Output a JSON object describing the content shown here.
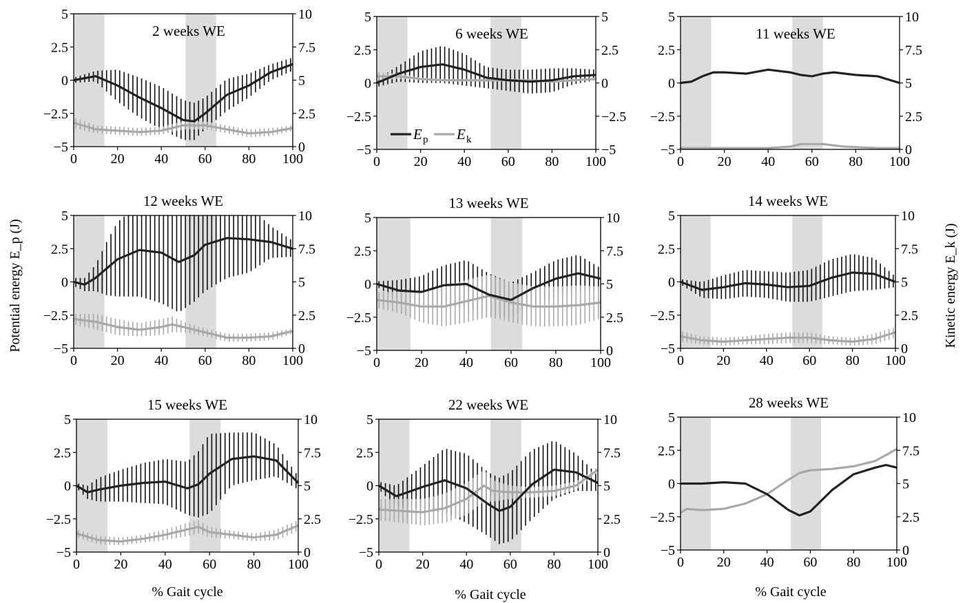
{
  "chart_data": {
    "type": "line",
    "left_ylabel": "Potential energy E_p (J)",
    "right_ylabel": "Kinetic energy E_k (J)",
    "xlabel": "% Gait cycle",
    "legend": {
      "ep": "E",
      "ep_sub": "p",
      "ek": "E",
      "ek_sub": "k",
      "placement": "panel-2 bottom-left"
    },
    "stance_shading": [
      [
        0,
        14
      ],
      [
        51,
        65
      ]
    ],
    "panels": [
      {
        "title": "2 weeks WE",
        "xlim": [
          0,
          100
        ],
        "ylim_left": [
          -5,
          5
        ],
        "ylim_right": [
          0,
          10
        ],
        "left_ticks": [
          "5",
          "2.5",
          "0",
          "−2.5",
          "−5"
        ],
        "right_ticks": [
          "10",
          "7.5",
          "5",
          "2.5",
          "0"
        ],
        "x_ticks": [
          "0",
          "20",
          "40",
          "60",
          "80",
          "100"
        ],
        "shading": [
          [
            0,
            14
          ],
          [
            51,
            65
          ]
        ],
        "ep": {
          "x": [
            0,
            10,
            20,
            30,
            40,
            50,
            55,
            60,
            70,
            80,
            90,
            100
          ],
          "y": [
            0,
            0.3,
            -0.4,
            -1.3,
            -2.1,
            -3.0,
            -3.1,
            -2.5,
            -1.1,
            -0.4,
            0.6,
            1.2
          ],
          "sd": [
            0.2,
            0.4,
            1.2,
            1.5,
            1.6,
            1.5,
            1.4,
            1.2,
            1.2,
            0.9,
            0.6,
            0.5
          ]
        },
        "ek": {
          "x": [
            0,
            10,
            20,
            30,
            40,
            50,
            60,
            70,
            80,
            90,
            100
          ],
          "y": [
            1.8,
            1.3,
            1.2,
            1.1,
            1.2,
            1.6,
            1.6,
            1.3,
            1.0,
            1.1,
            1.4
          ],
          "sd": [
            0.4,
            0.3,
            0.3,
            0.3,
            0.3,
            0.3,
            0.3,
            0.3,
            0.3,
            0.3,
            0.2
          ]
        }
      },
      {
        "title": "6 weeks WE",
        "xlim": [
          0,
          100
        ],
        "ylim_left": [
          -5,
          5
        ],
        "ylim_right": [
          -5,
          5
        ],
        "left_ticks": [
          "5",
          "2.5",
          "0",
          "−2.5",
          "−5"
        ],
        "right_ticks": [
          "5",
          "2.5",
          "0",
          "−2.5",
          "−5"
        ],
        "x_ticks": [
          "0",
          "20",
          "40",
          "60",
          "80",
          "100"
        ],
        "shading": [
          [
            0,
            14
          ],
          [
            52,
            66
          ]
        ],
        "ep": {
          "x": [
            0,
            10,
            20,
            30,
            40,
            50,
            60,
            70,
            80,
            90,
            100
          ],
          "y": [
            0,
            0.7,
            1.2,
            1.4,
            1.0,
            0.4,
            0.2,
            0.1,
            0.2,
            0.5,
            0.6
          ],
          "sd": [
            0.3,
            0.6,
            1.2,
            1.4,
            1.2,
            0.8,
            0.8,
            0.9,
            0.9,
            0.6,
            0.4
          ]
        },
        "ek": {
          "x": [
            0,
            10,
            20,
            30,
            40,
            50,
            60,
            70,
            80,
            90,
            100
          ],
          "y": [
            0.5,
            0.5,
            0.3,
            0.2,
            0.2,
            0.2,
            0.2,
            0.2,
            0.1,
            0.2,
            0.3
          ],
          "sd": [
            0.3,
            0.2,
            0.1,
            0.1,
            0.1,
            0.1,
            0.1,
            0.1,
            0.1,
            0.1,
            0.1
          ]
        }
      },
      {
        "title": "11 weeks WE",
        "xlim": [
          0,
          100
        ],
        "ylim_left": [
          -5,
          5
        ],
        "ylim_right": [
          0,
          10
        ],
        "left_ticks": [
          "5",
          "2.5",
          "0",
          "−2.5",
          "−5"
        ],
        "right_ticks": [
          "10",
          "7.5",
          "5",
          "2.5",
          "0"
        ],
        "x_ticks": [
          "0",
          "20",
          "40",
          "60",
          "80",
          "100"
        ],
        "shading": [
          [
            0,
            14
          ],
          [
            51,
            65
          ]
        ],
        "ep": {
          "x": [
            0,
            5,
            10,
            15,
            20,
            30,
            40,
            50,
            55,
            60,
            65,
            70,
            80,
            90,
            100
          ],
          "y": [
            0,
            0.1,
            0.5,
            0.8,
            0.8,
            0.7,
            1.0,
            0.8,
            0.6,
            0.5,
            0.7,
            0.8,
            0.6,
            0.5,
            0
          ],
          "sd": [
            0,
            0,
            0,
            0,
            0,
            0,
            0,
            0,
            0,
            0,
            0,
            0,
            0,
            0,
            0
          ]
        },
        "ek": {
          "x": [
            0,
            20,
            40,
            50,
            55,
            65,
            75,
            90,
            100
          ],
          "y": [
            0.1,
            0.1,
            0.1,
            0.2,
            0.4,
            0.4,
            0.2,
            0.1,
            0.1
          ],
          "sd": [
            0,
            0,
            0,
            0,
            0,
            0,
            0,
            0,
            0
          ]
        }
      },
      {
        "title": "12 weeks WE",
        "xlim": [
          0,
          100
        ],
        "ylim_left": [
          -5,
          5
        ],
        "ylim_right": [
          0,
          10
        ],
        "left_ticks": [
          "5",
          "2.5",
          "0",
          "−2.5",
          "−5"
        ],
        "right_ticks": [
          "10",
          "7.5",
          "5",
          "2.5",
          "0"
        ],
        "x_ticks": [
          "0",
          "20",
          "40",
          "60",
          "80",
          "100"
        ],
        "shading": [
          [
            0,
            14
          ],
          [
            51,
            65
          ]
        ],
        "ep": {
          "x": [
            0,
            5,
            10,
            15,
            20,
            30,
            40,
            48,
            55,
            60,
            70,
            80,
            90,
            100
          ],
          "y": [
            0,
            -0.2,
            0.3,
            1.0,
            1.7,
            2.4,
            2.2,
            1.5,
            2.0,
            2.8,
            3.3,
            3.2,
            3.0,
            2.5
          ],
          "sd": [
            0.3,
            0.5,
            1.0,
            2.0,
            2.8,
            3.5,
            3.8,
            3.8,
            3.5,
            3.5,
            3.0,
            2.5,
            1.2,
            0.6
          ]
        },
        "ek": {
          "x": [
            0,
            10,
            20,
            30,
            40,
            45,
            50,
            60,
            70,
            80,
            90,
            100
          ],
          "y": [
            2.2,
            2.0,
            1.6,
            1.4,
            1.6,
            1.8,
            1.6,
            1.2,
            0.8,
            0.8,
            0.9,
            1.3
          ],
          "sd": [
            0.4,
            0.6,
            0.6,
            0.5,
            0.6,
            0.6,
            0.4,
            0.3,
            0.3,
            0.3,
            0.3,
            0.2
          ]
        }
      },
      {
        "title": "13 weeks WE",
        "xlim": [
          0,
          100
        ],
        "ylim_left": [
          -5,
          5
        ],
        "ylim_right": [
          0,
          10
        ],
        "left_ticks": [
          "5",
          "2.5",
          "0",
          "−2.5",
          "−5"
        ],
        "right_ticks": [
          "10",
          "7.5",
          "5",
          "2.5",
          "0"
        ],
        "x_ticks": [
          "0",
          "20",
          "40",
          "60",
          "80",
          "100"
        ],
        "shading": [
          [
            0,
            15
          ],
          [
            51,
            65
          ]
        ],
        "ep": {
          "x": [
            0,
            10,
            20,
            30,
            40,
            50,
            60,
            70,
            80,
            90,
            100
          ],
          "y": [
            0,
            -0.5,
            -0.6,
            -0.1,
            0,
            -0.8,
            -1.2,
            -0.3,
            0.4,
            0.8,
            0.4
          ],
          "sd": [
            0.2,
            0.8,
            1.2,
            1.5,
            1.8,
            1.6,
            1.3,
            1.2,
            1.4,
            1.4,
            0.8
          ]
        },
        "ek": {
          "x": [
            0,
            10,
            20,
            30,
            40,
            50,
            60,
            70,
            80,
            90,
            100
          ],
          "y": [
            3.8,
            3.6,
            3.3,
            3.3,
            3.7,
            4.1,
            3.6,
            3.3,
            3.3,
            3.4,
            3.6
          ],
          "sd": [
            0.6,
            0.8,
            1.2,
            1.5,
            1.6,
            1.6,
            1.5,
            1.5,
            1.5,
            1.5,
            1.2
          ]
        }
      },
      {
        "title": "14 weeks WE",
        "xlim": [
          0,
          100
        ],
        "ylim_left": [
          -5,
          5
        ],
        "ylim_right": [
          0,
          10
        ],
        "left_ticks": [
          "5",
          "2.5",
          "0",
          "−2.5",
          "−5"
        ],
        "right_ticks": [
          "10",
          "7.5",
          "5",
          "2.5",
          "0"
        ],
        "x_ticks": [
          "0",
          "20",
          "40",
          "60",
          "80",
          "100"
        ],
        "shading": [
          [
            0,
            14
          ],
          [
            52,
            66
          ]
        ],
        "ep": {
          "x": [
            0,
            10,
            20,
            30,
            40,
            50,
            60,
            70,
            80,
            90,
            100
          ],
          "y": [
            0,
            -0.6,
            -0.4,
            -0.1,
            -0.2,
            -0.4,
            -0.3,
            0.3,
            0.7,
            0.6,
            0
          ],
          "sd": [
            0.2,
            0.6,
            0.9,
            1.0,
            1.0,
            1.1,
            1.2,
            1.4,
            1.4,
            1.2,
            0.4
          ]
        },
        "ek": {
          "x": [
            0,
            10,
            20,
            30,
            40,
            50,
            60,
            70,
            80,
            90,
            100
          ],
          "y": [
            0.9,
            0.6,
            0.5,
            0.6,
            0.7,
            0.8,
            0.8,
            0.6,
            0.5,
            0.7,
            1.2
          ],
          "sd": [
            0.4,
            0.3,
            0.3,
            0.3,
            0.4,
            0.4,
            0.4,
            0.3,
            0.3,
            0.4,
            0.4
          ]
        }
      },
      {
        "title": "15 weeks WE",
        "xlim": [
          0,
          100
        ],
        "ylim_left": [
          -5,
          5
        ],
        "ylim_right": [
          0,
          10
        ],
        "left_ticks": [
          "5",
          "2.5",
          "0",
          "−2.5",
          "−5"
        ],
        "right_ticks": [
          "10",
          "7.5",
          "5",
          "2.5",
          "0"
        ],
        "x_ticks": [
          "0",
          "20",
          "40",
          "60",
          "80",
          "100"
        ],
        "shading": [
          [
            0,
            14
          ],
          [
            51,
            65
          ]
        ],
        "ep": {
          "x": [
            0,
            5,
            10,
            20,
            30,
            40,
            50,
            55,
            60,
            70,
            80,
            90,
            100
          ],
          "y": [
            0,
            -0.5,
            -0.3,
            0,
            0.2,
            0.3,
            -0.2,
            0.1,
            0.9,
            2.0,
            2.2,
            1.9,
            0.2
          ],
          "sd": [
            0.2,
            0.5,
            0.9,
            1.2,
            1.5,
            1.7,
            2.0,
            2.5,
            3.0,
            2.0,
            1.8,
            1.2,
            0.5
          ]
        },
        "ek": {
          "x": [
            0,
            10,
            20,
            30,
            40,
            50,
            55,
            60,
            70,
            80,
            90,
            100
          ],
          "y": [
            1.4,
            0.9,
            0.8,
            1.0,
            1.3,
            1.7,
            1.9,
            1.5,
            1.3,
            1.1,
            1.3,
            2.0
          ],
          "sd": [
            0.3,
            0.3,
            0.3,
            0.3,
            0.4,
            0.5,
            0.5,
            0.4,
            0.3,
            0.3,
            0.4,
            0.4
          ]
        }
      },
      {
        "title": "22 weeks WE",
        "xlim": [
          0,
          100
        ],
        "ylim_left": [
          -5,
          5
        ],
        "ylim_right": [
          0,
          10
        ],
        "left_ticks": [
          "5",
          "2.5",
          "0",
          "−2.5",
          "−5"
        ],
        "right_ticks": [
          "10",
          "7.5",
          "5",
          "2.5",
          "0"
        ],
        "x_ticks": [
          "0",
          "20",
          "40",
          "60",
          "80",
          "100"
        ],
        "shading": [
          [
            0,
            14
          ],
          [
            51,
            65
          ]
        ],
        "ep": {
          "x": [
            0,
            8,
            20,
            30,
            40,
            50,
            55,
            60,
            70,
            80,
            90,
            100
          ],
          "y": [
            0,
            -0.8,
            -0.1,
            0.4,
            -0.2,
            -1.4,
            -1.9,
            -1.6,
            0.1,
            1.2,
            1.0,
            0.2
          ],
          "sd": [
            0.3,
            0.8,
            1.6,
            2.4,
            2.6,
            2.4,
            2.5,
            2.6,
            2.6,
            2.2,
            1.4,
            0.6
          ]
        },
        "ek": {
          "x": [
            0,
            10,
            20,
            30,
            40,
            48,
            52,
            60,
            70,
            80,
            90,
            100
          ],
          "y": [
            3.2,
            3.1,
            3.0,
            3.3,
            4.0,
            5.0,
            4.6,
            4.5,
            4.5,
            4.6,
            5.0,
            6.2
          ],
          "sd": [
            0.8,
            0.9,
            1.0,
            1.1,
            1.2,
            1.2,
            0.8,
            0.5,
            0.4,
            0.4,
            0.3,
            0.2
          ]
        }
      },
      {
        "title": "28 weeks WE",
        "xlim": [
          0,
          100
        ],
        "ylim_left": [
          -5,
          5
        ],
        "ylim_right": [
          0,
          10
        ],
        "left_ticks": [
          "5",
          "2.5",
          "0",
          "−2.5",
          "−5"
        ],
        "right_ticks": [
          "10",
          "7.5",
          "5",
          "2.5",
          "0"
        ],
        "x_ticks": [
          "0",
          "20",
          "40",
          "60",
          "80",
          "100"
        ],
        "shading": [
          [
            0,
            14
          ],
          [
            51,
            65
          ]
        ],
        "ep": {
          "x": [
            0,
            10,
            20,
            30,
            40,
            50,
            55,
            60,
            70,
            80,
            90,
            95,
            100
          ],
          "y": [
            0,
            0,
            0.1,
            0,
            -0.8,
            -2.0,
            -2.4,
            -2.1,
            -0.5,
            0.7,
            1.2,
            1.4,
            1.2
          ],
          "sd": [
            0,
            0,
            0,
            0,
            0,
            0,
            0,
            0,
            0,
            0,
            0,
            0,
            0
          ]
        },
        "ek": {
          "x": [
            0,
            3,
            10,
            20,
            30,
            40,
            50,
            55,
            60,
            70,
            80,
            90,
            100
          ],
          "y": [
            2.8,
            3.1,
            3.0,
            3.1,
            3.5,
            4.2,
            5.3,
            5.8,
            6.0,
            6.1,
            6.3,
            6.7,
            7.6
          ],
          "sd": [
            0,
            0,
            0,
            0,
            0,
            0,
            0,
            0,
            0,
            0,
            0,
            0,
            0
          ]
        }
      }
    ]
  }
}
